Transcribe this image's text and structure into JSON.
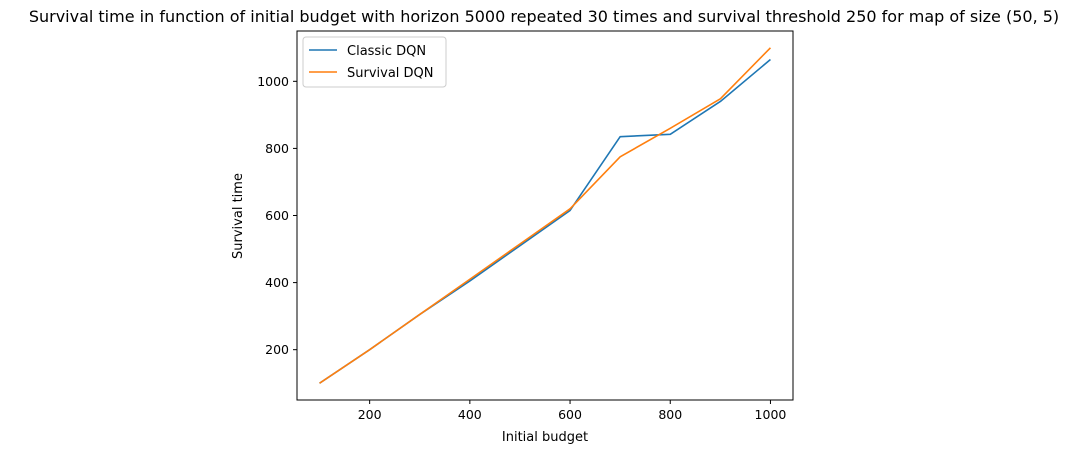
{
  "chart_data": {
    "type": "line",
    "title": "Survival time in function of initial budget with horizon 5000 repeated 30 times and survival threshold 250 for map of size (50, 5)",
    "xlabel": "Initial budget",
    "ylabel": "Survival time",
    "xlim": [
      55,
      1045
    ],
    "ylim": [
      50,
      1150
    ],
    "xticks": [
      200,
      400,
      600,
      800,
      1000
    ],
    "yticks": [
      200,
      400,
      600,
      800,
      1000
    ],
    "grid": false,
    "legend_position": "top-left",
    "x": [
      100,
      200,
      300,
      400,
      500,
      600,
      700,
      800,
      900,
      1000
    ],
    "series": [
      {
        "name": "Classic DQN",
        "color": "#1f77b4",
        "values": [
          100,
          200,
          305,
          405,
          510,
          615,
          835,
          842,
          940,
          1065
        ]
      },
      {
        "name": "Survival DQN",
        "color": "#ff7f0e",
        "values": [
          100,
          200,
          305,
          410,
          515,
          620,
          775,
          860,
          948,
          1100
        ]
      }
    ]
  }
}
